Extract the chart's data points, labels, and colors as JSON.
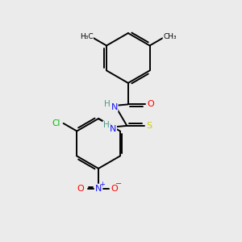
{
  "background_color": "#ebebeb",
  "atom_colors": {
    "C": "#000000",
    "H": "#4a9a8a",
    "N": "#1414ff",
    "O": "#ff0000",
    "S": "#cccc00",
    "Cl": "#00bb00"
  },
  "bond_color": "#000000",
  "bond_lw": 1.4,
  "fig_size": [
    3.0,
    3.0
  ],
  "dpi": 100
}
